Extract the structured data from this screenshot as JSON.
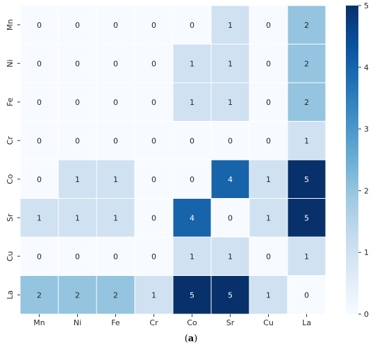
{
  "chart_data": {
    "type": "heatmap",
    "x_categories": [
      "Mn",
      "Ni",
      "Fe",
      "Cr",
      "Co",
      "Sr",
      "Cu",
      "La"
    ],
    "y_categories": [
      "Mn",
      "Ni",
      "Fe",
      "Cr",
      "Co",
      "Sr",
      "Cu",
      "La"
    ],
    "values": [
      [
        0,
        0,
        0,
        0,
        0,
        1,
        0,
        2
      ],
      [
        0,
        0,
        0,
        0,
        1,
        1,
        0,
        2
      ],
      [
        0,
        0,
        0,
        0,
        1,
        1,
        0,
        2
      ],
      [
        0,
        0,
        0,
        0,
        0,
        0,
        0,
        1
      ],
      [
        0,
        1,
        1,
        0,
        0,
        4,
        1,
        5
      ],
      [
        1,
        1,
        1,
        0,
        4,
        0,
        1,
        5
      ],
      [
        0,
        0,
        0,
        0,
        1,
        1,
        0,
        1
      ],
      [
        2,
        2,
        2,
        1,
        5,
        5,
        1,
        0
      ]
    ],
    "colorbar": {
      "min": 0,
      "max": 5,
      "ticks": [
        0,
        1,
        2,
        3,
        4,
        5
      ],
      "colormap": "Blues"
    },
    "annotations": true,
    "gridlines_between_cells": "white"
  },
  "caption": {
    "open": "(",
    "label": "a",
    "close": ")"
  }
}
